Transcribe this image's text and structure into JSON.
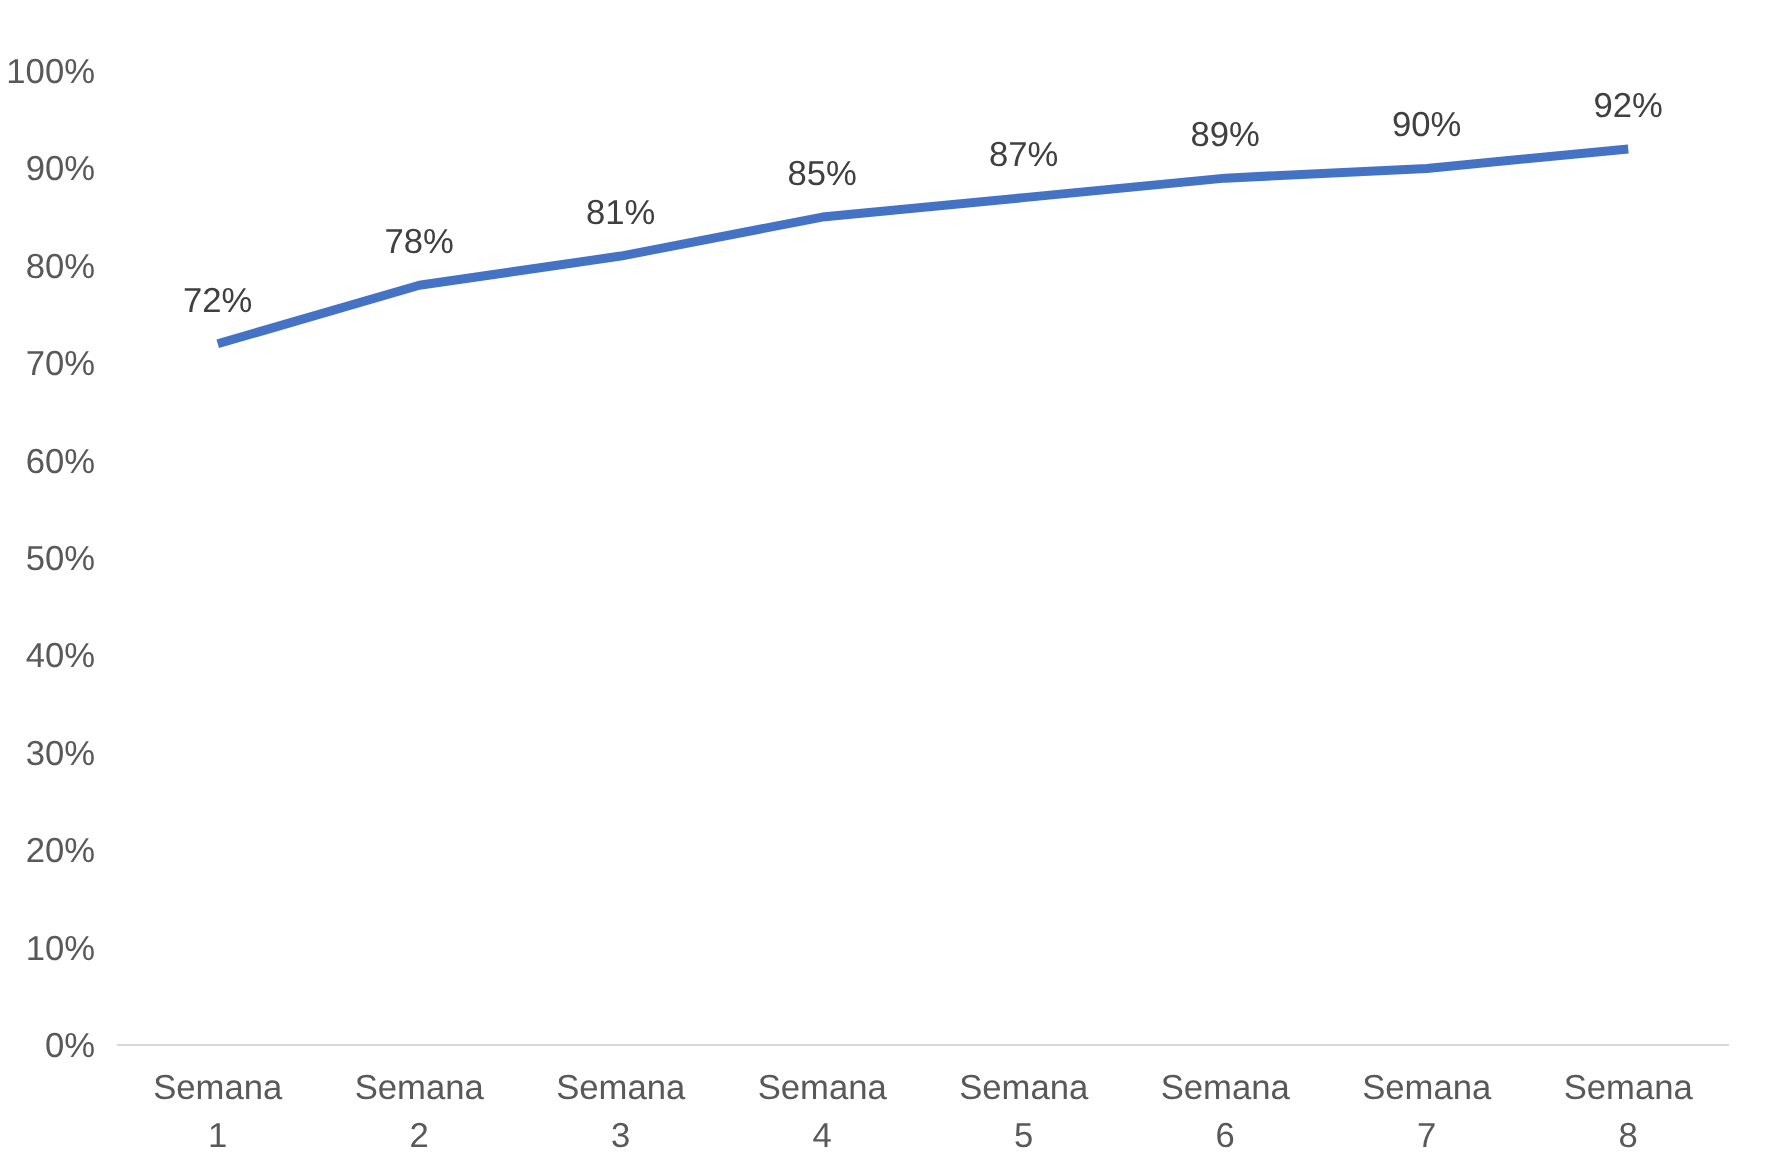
{
  "chart_data": {
    "type": "line",
    "categories": [
      "Semana 1",
      "Semana 2",
      "Semana 3",
      "Semana 4",
      "Semana 5",
      "Semana 6",
      "Semana 7",
      "Semana 8"
    ],
    "values": [
      72,
      78,
      81,
      85,
      87,
      89,
      90,
      92
    ],
    "value_labels": [
      "72%",
      "78%",
      "81%",
      "85%",
      "87%",
      "89%",
      "90%",
      "92%"
    ],
    "color": "#4472c4",
    "ylim": [
      0,
      100
    ],
    "yticks": [
      {
        "value": 0,
        "label": "0%"
      },
      {
        "value": 10,
        "label": "10%"
      },
      {
        "value": 20,
        "label": "20%"
      },
      {
        "value": 30,
        "label": "30%"
      },
      {
        "value": 40,
        "label": "40%"
      },
      {
        "value": 50,
        "label": "50%"
      },
      {
        "value": 60,
        "label": "60%"
      },
      {
        "value": 70,
        "label": "70%"
      },
      {
        "value": 80,
        "label": "80%"
      },
      {
        "value": 90,
        "label": "90%"
      },
      {
        "value": 100,
        "label": "100%"
      }
    ],
    "grid": false,
    "marker": "none",
    "line_style": "solid"
  }
}
